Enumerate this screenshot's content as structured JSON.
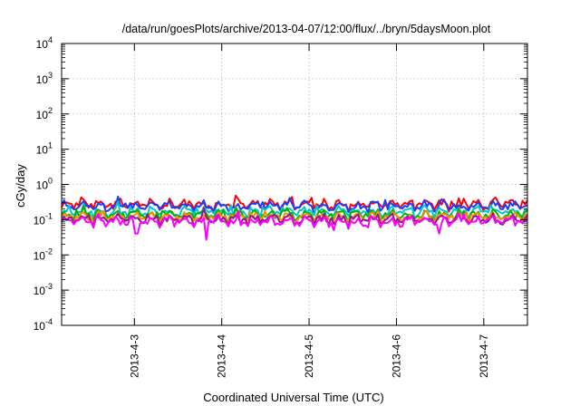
{
  "chart_data": {
    "type": "line",
    "title": "/data/run/goesPlots/archive/2013-04-07/12:00/flux/../bryn/5daysMoon.plot",
    "xlabel": "Coordinated Universal Time (UTC)",
    "ylabel": "cGy/day",
    "yscale": "log",
    "ylim": [
      0.0001,
      10000
    ],
    "xlim": [
      "2013-04-02T04:00",
      "2013-04-07T12:00"
    ],
    "grid": true,
    "legend": "none",
    "y_ticks": [
      {
        "base": "10",
        "exp": "4",
        "value": 10000
      },
      {
        "base": "10",
        "exp": "3",
        "value": 1000
      },
      {
        "base": "10",
        "exp": "2",
        "value": 100
      },
      {
        "base": "10",
        "exp": "1",
        "value": 10
      },
      {
        "base": "10",
        "exp": "0",
        "value": 1
      },
      {
        "base": "10",
        "exp": "-1",
        "value": 0.1
      },
      {
        "base": "10",
        "exp": "-2",
        "value": 0.01
      },
      {
        "base": "10",
        "exp": "-3",
        "value": 0.001
      },
      {
        "base": "10",
        "exp": "-4",
        "value": 0.0001
      }
    ],
    "x_ticks": [
      {
        "label": "2013-4-3",
        "value": "2013-04-03T00:00"
      },
      {
        "label": "2013-4-4",
        "value": "2013-04-04T00:00"
      },
      {
        "label": "2013-4-5",
        "value": "2013-04-05T00:00"
      },
      {
        "label": "2013-4-6",
        "value": "2013-04-06T00:00"
      },
      {
        "label": "2013-4-7",
        "value": "2013-04-07T00:00"
      }
    ],
    "series": [
      {
        "color": "#ff0000",
        "base": 0.27,
        "dips": []
      },
      {
        "color": "#1a3cff",
        "base": 0.24,
        "dips": []
      },
      {
        "color": "#00c8c8",
        "base": 0.17,
        "dips": []
      },
      {
        "color": "#00b400",
        "base": 0.14,
        "dips": []
      },
      {
        "color": "#ff8c00",
        "base": 0.12,
        "dips": []
      },
      {
        "color": "#8b1a8b",
        "base": 0.105,
        "dips": []
      },
      {
        "color": "#ff00ff",
        "base": 0.09,
        "dips": [
          {
            "x": "2013-04-03T00:30",
            "y": 0.04
          },
          {
            "x": "2013-04-03T20:00",
            "y": 0.027
          },
          {
            "x": "2013-04-05T07:00",
            "y": 0.05
          },
          {
            "x": "2013-04-06T12:00",
            "y": 0.04
          }
        ]
      }
    ]
  }
}
